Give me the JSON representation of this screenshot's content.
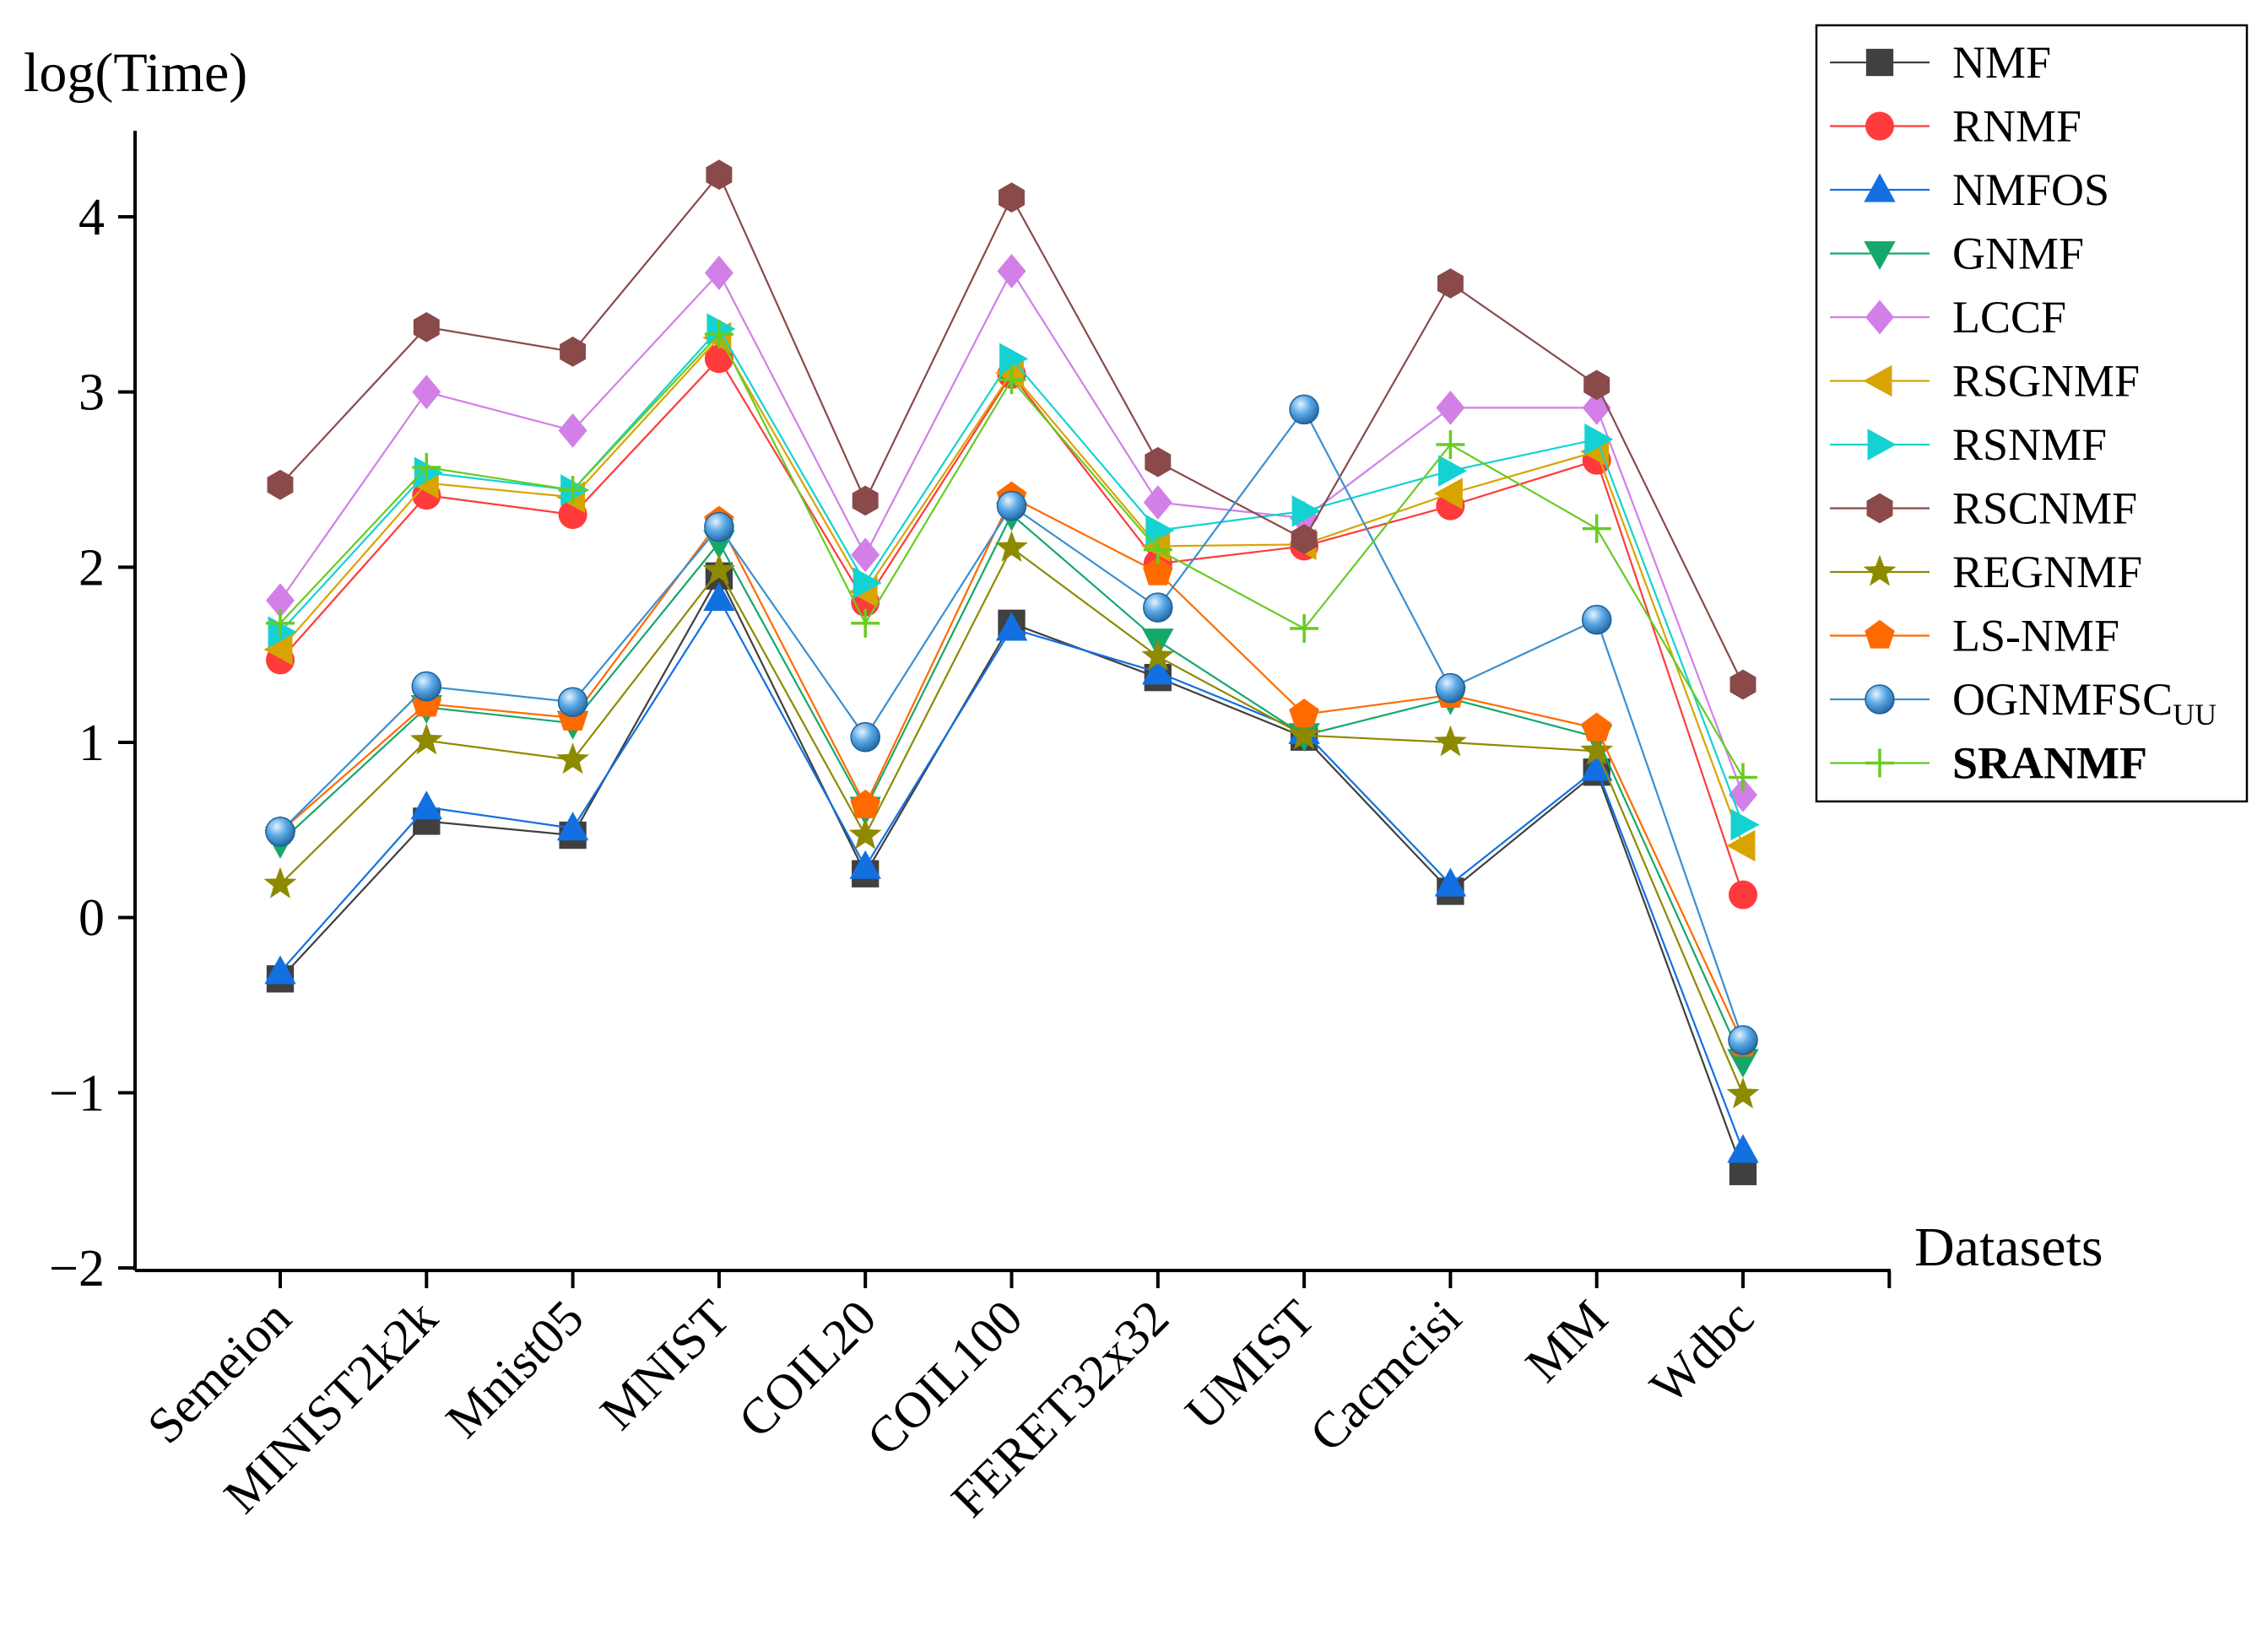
{
  "chart_data": {
    "type": "line",
    "ylabel": "log(Time)",
    "xlabel": "Datasets",
    "ylim": [
      -2,
      4.5
    ],
    "yticks": [
      {
        "value": 4,
        "label": "4"
      },
      {
        "value": 3,
        "label": "3"
      },
      {
        "value": 2,
        "label": "2"
      },
      {
        "value": 1,
        "label": "1"
      },
      {
        "value": 0,
        "label": "0"
      },
      {
        "value": -1,
        "label": "−1"
      },
      {
        "value": -2,
        "label": "−2"
      }
    ],
    "categories": [
      "Semeion",
      "MINIST2k2k",
      "Mnist05",
      "MNIST",
      "COIL20",
      "COIL100",
      "FERET32x32",
      "UMIST",
      "Cacmcisi",
      "MM",
      "Wdbc"
    ],
    "grid": false,
    "legend_position": "top-right",
    "series": [
      {
        "name": "NMF",
        "color": "#404040",
        "marker": "square",
        "values": [
          -0.35,
          0.55,
          0.47,
          1.95,
          0.25,
          1.68,
          1.37,
          1.03,
          0.15,
          0.83,
          -1.45
        ]
      },
      {
        "name": "RNMF",
        "color": "#ff3b3b",
        "marker": "circle",
        "values": [
          1.47,
          2.41,
          2.3,
          3.19,
          1.8,
          3.1,
          2.02,
          2.12,
          2.35,
          2.61,
          0.13
        ]
      },
      {
        "name": "NMFOS",
        "color": "#1270e0",
        "marker": "triangle-up",
        "values": [
          -0.31,
          0.63,
          0.51,
          1.82,
          0.29,
          1.65,
          1.4,
          1.06,
          0.19,
          0.85,
          -1.33
        ]
      },
      {
        "name": "GNMF",
        "color": "#15a86a",
        "marker": "triangle-down",
        "values": [
          0.43,
          1.2,
          1.11,
          2.14,
          0.62,
          2.3,
          1.58,
          1.04,
          1.25,
          1.03,
          -0.82
        ]
      },
      {
        "name": "LCCF",
        "color": "#d27fe8",
        "marker": "diamond",
        "values": [
          1.81,
          3.0,
          2.78,
          3.68,
          2.07,
          3.69,
          2.37,
          2.28,
          2.91,
          2.91,
          0.7
        ]
      },
      {
        "name": "RSGNMF",
        "color": "#d8a400",
        "marker": "triangle-left",
        "values": [
          1.53,
          2.48,
          2.4,
          3.31,
          1.86,
          3.11,
          2.12,
          2.13,
          2.42,
          2.66,
          0.41
        ]
      },
      {
        "name": "RSNMF",
        "color": "#15d2d2",
        "marker": "triangle-right",
        "values": [
          1.63,
          2.54,
          2.44,
          3.36,
          1.91,
          3.19,
          2.21,
          2.32,
          2.55,
          2.73,
          0.53
        ]
      },
      {
        "name": "RSCNMF",
        "color": "#8a4a4a",
        "marker": "hexagon",
        "values": [
          2.47,
          3.37,
          3.23,
          4.24,
          2.38,
          4.11,
          2.6,
          2.16,
          3.62,
          3.04,
          1.33
        ]
      },
      {
        "name": "REGNMF",
        "color": "#8e8a00",
        "marker": "star",
        "values": [
          0.19,
          1.01,
          0.9,
          1.98,
          0.47,
          2.11,
          1.49,
          1.04,
          1.0,
          0.95,
          -1.01
        ]
      },
      {
        "name": "LS-NMF",
        "color": "#ff6a00",
        "marker": "pentagon",
        "values": [
          0.49,
          1.22,
          1.14,
          2.26,
          0.64,
          2.4,
          1.97,
          1.16,
          1.27,
          1.08,
          -0.72
        ]
      },
      {
        "name": "OGNMFSC",
        "name_subscript": "UU",
        "color": "#3a8fd0",
        "marker": "sphere",
        "values": [
          0.49,
          1.32,
          1.23,
          2.23,
          1.03,
          2.35,
          1.77,
          2.9,
          1.31,
          1.7,
          -0.7
        ]
      },
      {
        "name": "SRANMF",
        "bold": true,
        "color": "#66cc22",
        "marker": "plus",
        "values": [
          1.68,
          2.57,
          2.44,
          3.33,
          1.68,
          3.07,
          2.1,
          1.65,
          2.7,
          2.22,
          0.8
        ]
      }
    ]
  }
}
